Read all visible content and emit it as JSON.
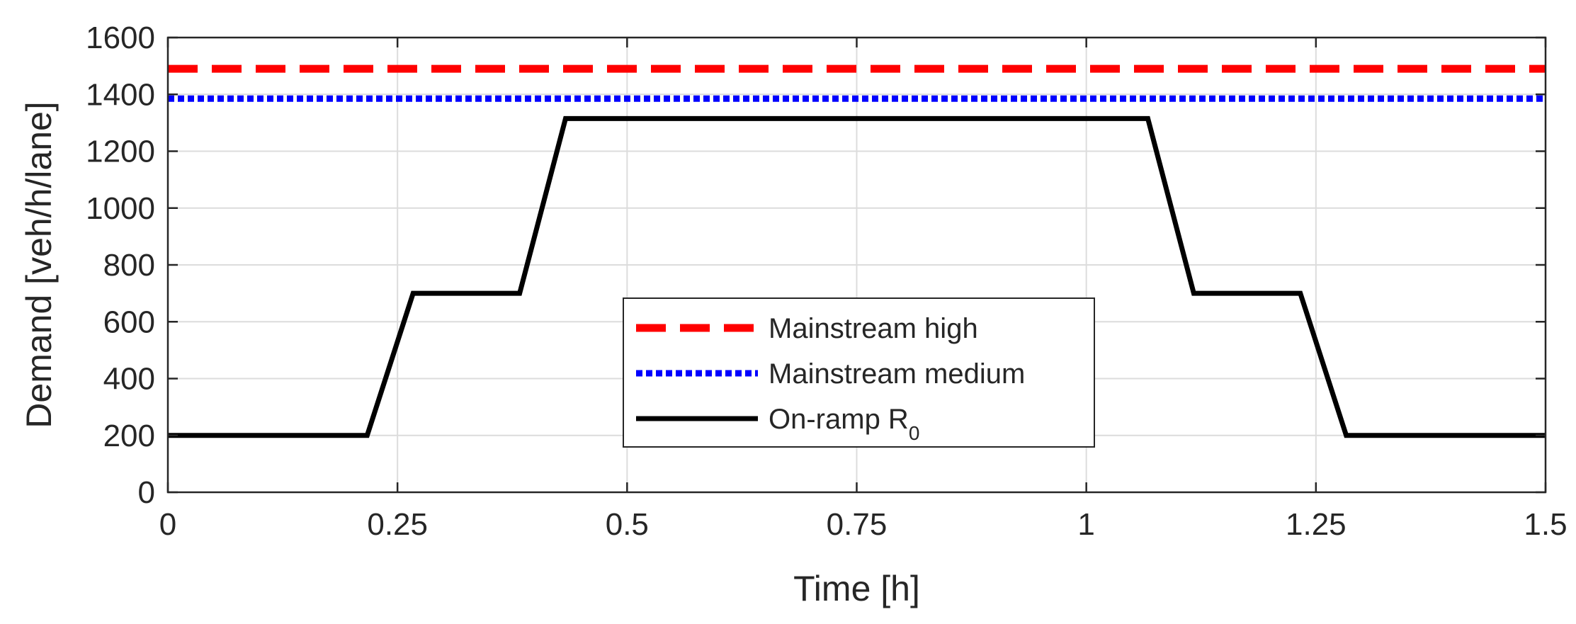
{
  "chart_data": {
    "type": "line",
    "title": "",
    "xlabel": "Time [h]",
    "ylabel": "Demand [veh/h/lane]",
    "xlim": [
      0,
      1.5
    ],
    "ylim": [
      0,
      1600
    ],
    "xticks": [
      0,
      0.25,
      0.5,
      0.75,
      1,
      1.25,
      1.5
    ],
    "xtick_labels": [
      "0",
      "0.25",
      "0.5",
      "0.75",
      "1",
      "1.25",
      "1.5"
    ],
    "yticks": [
      0,
      200,
      400,
      600,
      800,
      1000,
      1200,
      1400,
      1600
    ],
    "ytick_labels": [
      "0",
      "200",
      "400",
      "600",
      "800",
      "1000",
      "1200",
      "1400",
      "1600"
    ],
    "grid": true,
    "legend_position": "center-bottom",
    "series": [
      {
        "name": "Mainstream high",
        "color": "#ff0000",
        "style": "dashed",
        "x": [
          0,
          1.5
        ],
        "y": [
          1490,
          1490
        ]
      },
      {
        "name": "Mainstream medium",
        "color": "#0000ff",
        "style": "dotted",
        "x": [
          0,
          1.5
        ],
        "y": [
          1385,
          1385
        ]
      },
      {
        "name": "On-ramp R",
        "name_subscript": "0",
        "color": "#000000",
        "style": "solid",
        "x": [
          0,
          0.217,
          0.267,
          0.383,
          0.433,
          1.067,
          1.117,
          1.233,
          1.283,
          1.5
        ],
        "y": [
          200,
          200,
          700,
          700,
          1315,
          1315,
          700,
          700,
          200,
          200
        ]
      }
    ]
  }
}
